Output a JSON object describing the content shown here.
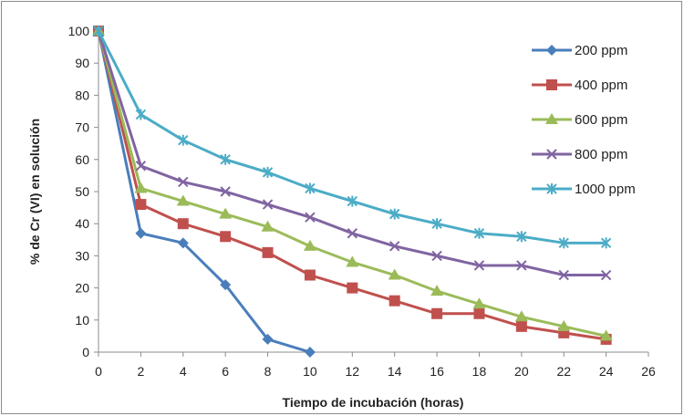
{
  "chart_data": {
    "type": "line",
    "xlabel": "Tiempo de incubación (horas)",
    "ylabel": "% de Cr (VI) en solución",
    "xlim": [
      0,
      26
    ],
    "ylim": [
      0,
      100
    ],
    "x_ticks": [
      0,
      2,
      4,
      6,
      8,
      10,
      12,
      14,
      16,
      18,
      20,
      22,
      24,
      26
    ],
    "y_ticks": [
      0,
      10,
      20,
      30,
      40,
      50,
      60,
      70,
      80,
      90,
      100
    ],
    "grid": false,
    "legend_position": "top-right",
    "series": [
      {
        "name": "200 ppm",
        "color": "#4a7ebb",
        "marker": "diamond",
        "x": [
          0,
          2,
          4,
          6,
          8,
          10
        ],
        "values": [
          100,
          37,
          34,
          21,
          4,
          0
        ]
      },
      {
        "name": "400 ppm",
        "color": "#c0504d",
        "marker": "square",
        "x": [
          0,
          2,
          4,
          6,
          8,
          10,
          12,
          14,
          16,
          18,
          20,
          22,
          24
        ],
        "values": [
          100,
          46,
          40,
          36,
          31,
          24,
          20,
          16,
          12,
          12,
          8,
          6,
          4
        ]
      },
      {
        "name": "600 ppm",
        "color": "#9bbb59",
        "marker": "triangle",
        "x": [
          0,
          2,
          4,
          6,
          8,
          10,
          12,
          14,
          16,
          18,
          20,
          22,
          24
        ],
        "values": [
          100,
          51,
          47,
          43,
          39,
          33,
          28,
          24,
          19,
          15,
          11,
          8,
          5
        ]
      },
      {
        "name": "800 ppm",
        "color": "#8064a2",
        "marker": "x",
        "x": [
          0,
          2,
          4,
          6,
          8,
          10,
          12,
          14,
          16,
          18,
          20,
          22,
          24
        ],
        "values": [
          100,
          58,
          53,
          50,
          46,
          42,
          37,
          33,
          30,
          27,
          27,
          24,
          24
        ]
      },
      {
        "name": "1000 ppm",
        "color": "#4bacc6",
        "marker": "star",
        "x": [
          0,
          2,
          4,
          6,
          8,
          10,
          12,
          14,
          16,
          18,
          20,
          22,
          24
        ],
        "values": [
          100,
          74,
          66,
          60,
          56,
          51,
          47,
          43,
          40,
          37,
          36,
          34,
          34
        ]
      }
    ]
  }
}
